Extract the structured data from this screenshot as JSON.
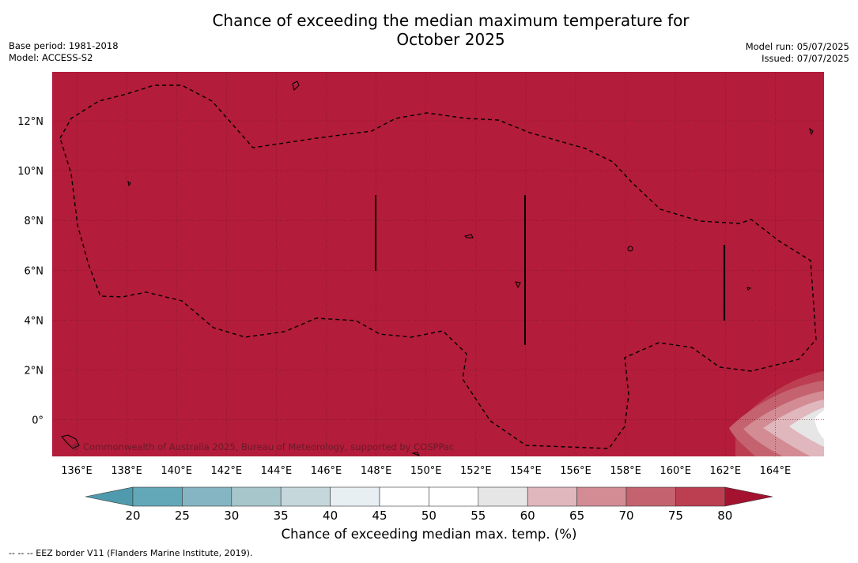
{
  "header": {
    "title_line1": "Chance of exceeding the median maximum temperature for",
    "title_line2": "October 2025",
    "base_period": "Base period: 1981-2018",
    "model": "Model: ACCESS-S2",
    "model_run": "Model run: 05/07/2025",
    "issued": "Issued: 07/07/2025"
  },
  "map": {
    "copyright": "© Commonwealth of Australia 2025, Bureau of Meteorology, supported by COSPPac",
    "x_ticks": [
      "136°E",
      "138°E",
      "140°E",
      "142°E",
      "144°E",
      "146°E",
      "148°E",
      "150°E",
      "152°E",
      "154°E",
      "156°E",
      "158°E",
      "160°E",
      "162°E",
      "164°E"
    ],
    "y_ticks": [
      "12°N",
      "10°N",
      "8°N",
      "6°N",
      "4°N",
      "2°N",
      "0°"
    ],
    "background_color": "#b31c3a",
    "grid": true
  },
  "colorbar": {
    "ticks": [
      "20",
      "25",
      "30",
      "35",
      "40",
      "45",
      "50",
      "55",
      "60",
      "65",
      "70",
      "75",
      "80"
    ],
    "colors": [
      "#62a8b9",
      "#85b5c3",
      "#a6c6cc",
      "#c6d7dc",
      "#e8eff2",
      "#ffffff",
      "#ffffff",
      "#e6e6e6",
      "#dfb7bd",
      "#d38b94",
      "#c4636f",
      "#bb3f51"
    ],
    "under_color": "#4f9bad",
    "over_color": "#a5122f",
    "label": "Chance of exceeding median max. temp. (%)"
  },
  "footer": {
    "legend_note": "--  --  -- EEZ border V11 (Flanders Marine Institute, 2019)."
  }
}
